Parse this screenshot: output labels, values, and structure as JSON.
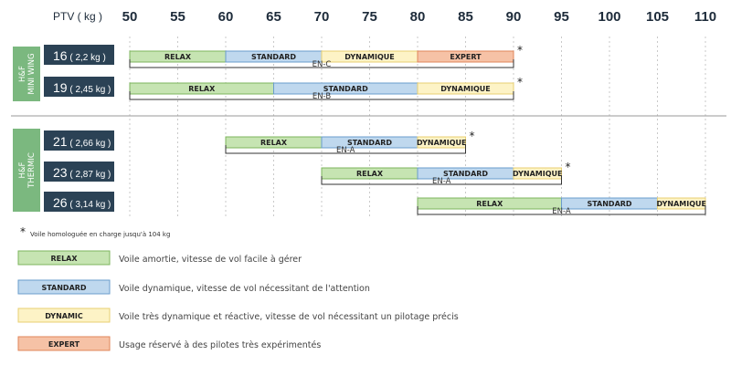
{
  "chart_data": {
    "type": "range-bar",
    "axis": {
      "label": "PTV ( kg )",
      "min": 50,
      "max": 110,
      "ticks": [
        50,
        55,
        60,
        65,
        70,
        75,
        80,
        85,
        90,
        95,
        100,
        105,
        110
      ]
    },
    "grid": true,
    "groups": [
      {
        "name": "H&F MINI WING",
        "rows": [
          {
            "size": "16",
            "weight": "( 2,2 kg )",
            "segments": [
              {
                "label": "RELAX",
                "class": "RELAX",
                "from": 50,
                "to": 60
              },
              {
                "label": "STANDARD",
                "class": "STANDARD",
                "from": 60,
                "to": 70
              },
              {
                "label": "DYNAMIQUE",
                "class": "DYNAMIC",
                "from": 70,
                "to": 80
              },
              {
                "label": "EXPERT",
                "class": "EXPERT",
                "from": 80,
                "to": 90
              }
            ],
            "star": true,
            "certification": {
              "label": "EN-C",
              "from": 50,
              "to": 90
            }
          },
          {
            "size": "19",
            "weight": "( 2,45 kg )",
            "segments": [
              {
                "label": "RELAX",
                "class": "RELAX",
                "from": 50,
                "to": 65
              },
              {
                "label": "STANDARD",
                "class": "STANDARD",
                "from": 65,
                "to": 80
              },
              {
                "label": "DYNAMIQUE",
                "class": "DYNAMIC",
                "from": 80,
                "to": 90
              }
            ],
            "star": true,
            "certification": {
              "label": "EN-B",
              "from": 50,
              "to": 90
            }
          }
        ]
      },
      {
        "name": "H&F THERMIC",
        "rows": [
          {
            "size": "21",
            "weight": "( 2,66 kg )",
            "segments": [
              {
                "label": "RELAX",
                "class": "RELAX",
                "from": 60,
                "to": 70
              },
              {
                "label": "STANDARD",
                "class": "STANDARD",
                "from": 70,
                "to": 80
              },
              {
                "label": "DYNAMIQUE",
                "class": "DYNAMIC",
                "from": 80,
                "to": 85
              }
            ],
            "star": true,
            "certification": {
              "label": "EN-A",
              "from": 60,
              "to": 85
            }
          },
          {
            "size": "23",
            "weight": "( 2,87 kg )",
            "segments": [
              {
                "label": "RELAX",
                "class": "RELAX",
                "from": 70,
                "to": 80
              },
              {
                "label": "STANDARD",
                "class": "STANDARD",
                "from": 80,
                "to": 90
              },
              {
                "label": "DYNAMIQUE",
                "class": "DYNAMIC",
                "from": 90,
                "to": 95
              }
            ],
            "star": true,
            "certification": {
              "label": "EN-A",
              "from": 70,
              "to": 95
            }
          },
          {
            "size": "26",
            "weight": "( 3,14 kg )",
            "segments": [
              {
                "label": "RELAX",
                "class": "RELAX",
                "from": 80,
                "to": 95
              },
              {
                "label": "STANDARD",
                "class": "STANDARD",
                "from": 95,
                "to": 105
              },
              {
                "label": "DYNAMIQUE",
                "class": "DYNAMIC",
                "from": 105,
                "to": 110
              }
            ],
            "star": false,
            "certification": {
              "label": "EN-A",
              "from": 80,
              "to": 110
            }
          }
        ]
      }
    ],
    "footnote": {
      "symbol": "*",
      "text": "Voile homologuée en charge jusqu'à 104 kg"
    },
    "legend": [
      {
        "key": "RELAX",
        "label": "RELAX",
        "text": "Voile amortie, vitesse de vol facile à gérer"
      },
      {
        "key": "STANDARD",
        "label": "STANDARD",
        "text": "Voile dynamique, vitesse de vol nécessitant de l'attention"
      },
      {
        "key": "DYNAMIC",
        "label": "DYNAMIC",
        "text": "Voile très dynamique et réactive, vitesse de vol nécessitant un pilotage précis"
      },
      {
        "key": "EXPERT",
        "label": "EXPERT",
        "text": "Usage réservé à des pilotes très expérimentés"
      }
    ]
  },
  "colors": {
    "RELAX": {
      "fill": "#c6e4b2",
      "stroke": "#7cb55c"
    },
    "STANDARD": {
      "fill": "#bfd8ee",
      "stroke": "#6a9ccc"
    },
    "DYNAMIC": {
      "fill": "#fdf3c6",
      "stroke": "#e8cf72"
    },
    "EXPERT": {
      "fill": "#f6c2a6",
      "stroke": "#e0855a"
    },
    "label_box": "#2b4255",
    "group_box": "#7bb87f",
    "grid": "#c9c9c9",
    "separator": "#9a9a9a"
  }
}
